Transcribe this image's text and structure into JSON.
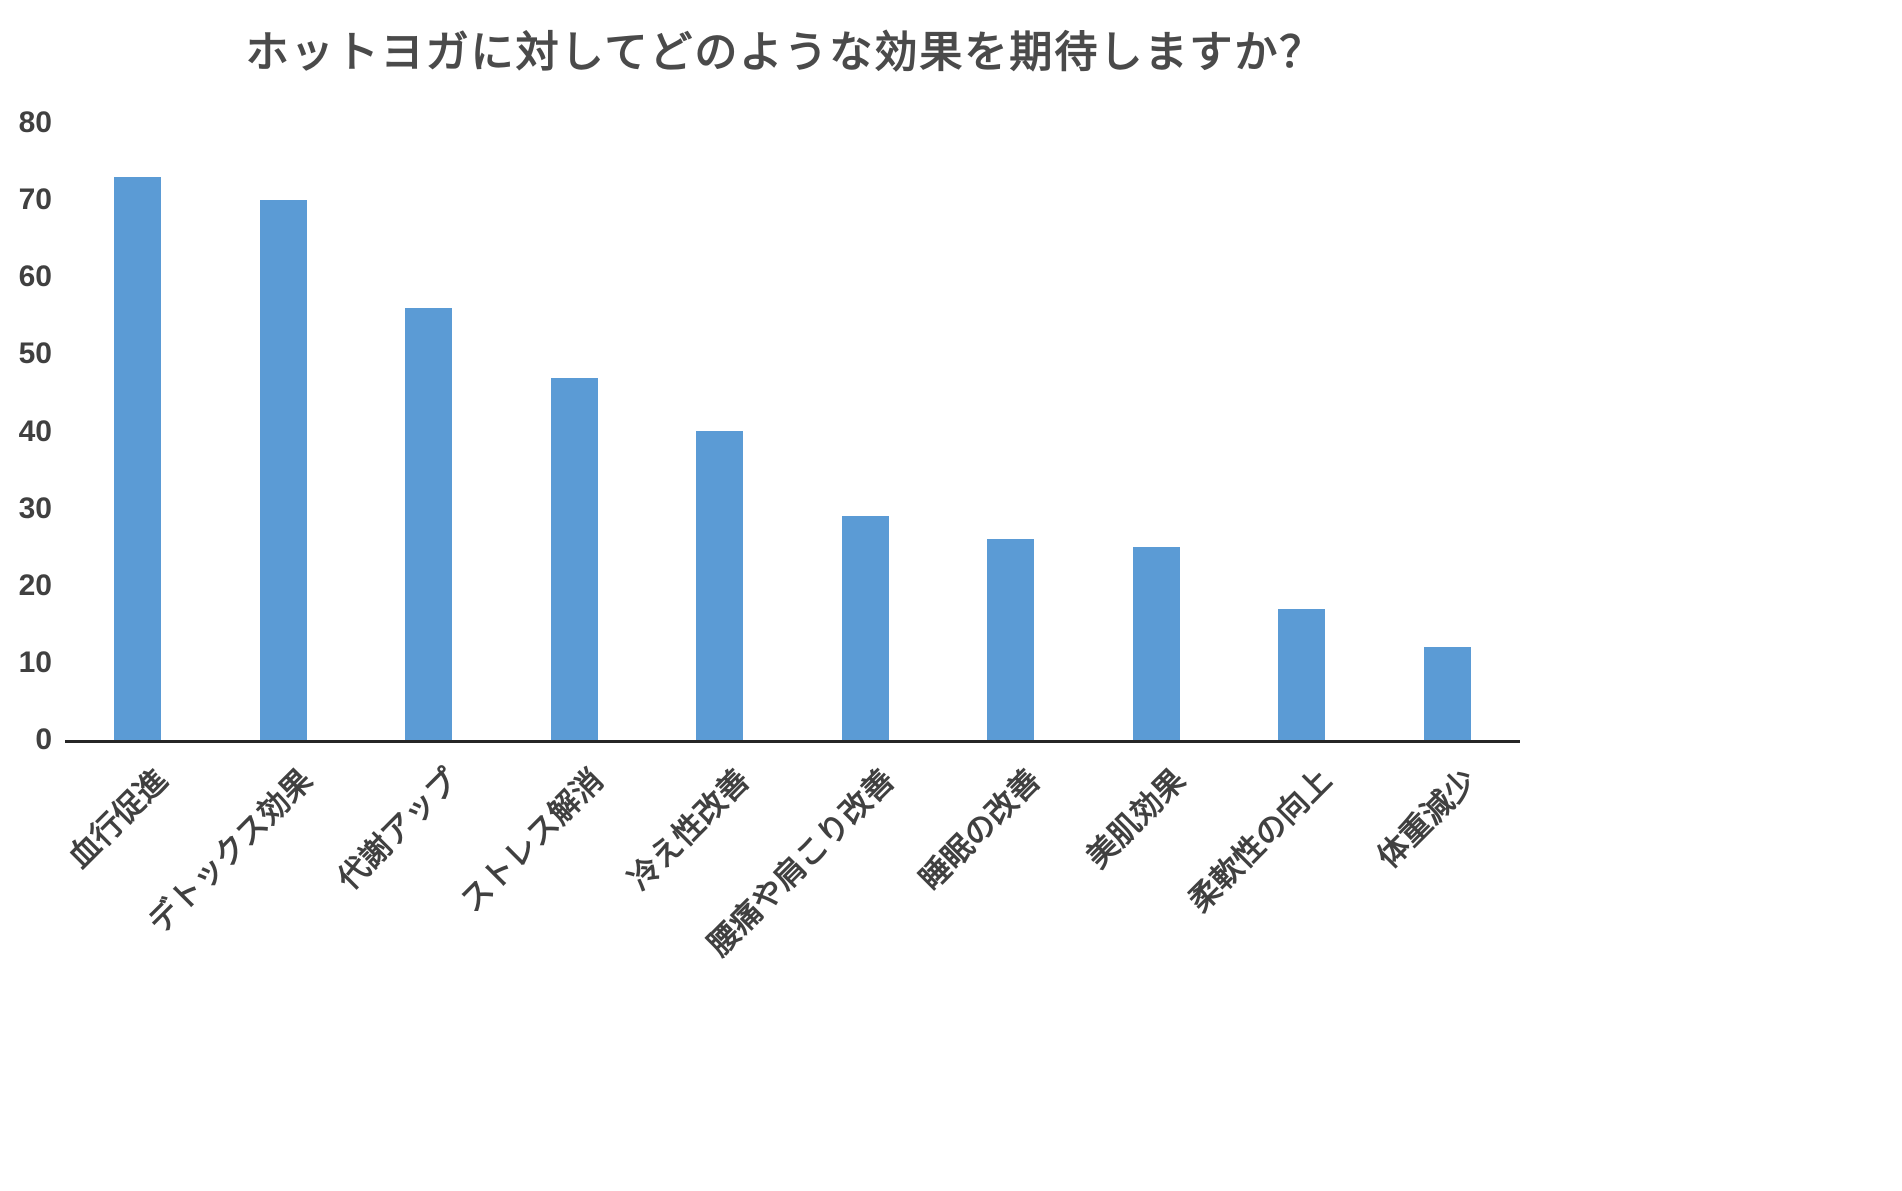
{
  "chart_data": {
    "type": "bar",
    "title": "ホットヨガに対してどのような効果を期待しますか？",
    "categories": [
      "血行促進",
      "デトックス効果",
      "代謝アップ",
      "ストレス解消",
      "冷え性改善",
      "腰痛や肩こり改善",
      "睡眠の改善",
      "美肌効果",
      "柔軟性の向上",
      "体重減少"
    ],
    "values": [
      73,
      70,
      56,
      47,
      40,
      29,
      26,
      25,
      17,
      12
    ],
    "xlabel": "",
    "ylabel": "",
    "ylim": [
      0,
      80
    ],
    "yticks": [
      0,
      10,
      20,
      30,
      40,
      50,
      60,
      70,
      80
    ],
    "grid": false,
    "legend": "none",
    "bar_color": "#5B9BD5"
  },
  "styles": {
    "background": "#ffffff",
    "title_color": "#4a4a4a",
    "label_color": "#404040",
    "axis_color": "#262626"
  }
}
